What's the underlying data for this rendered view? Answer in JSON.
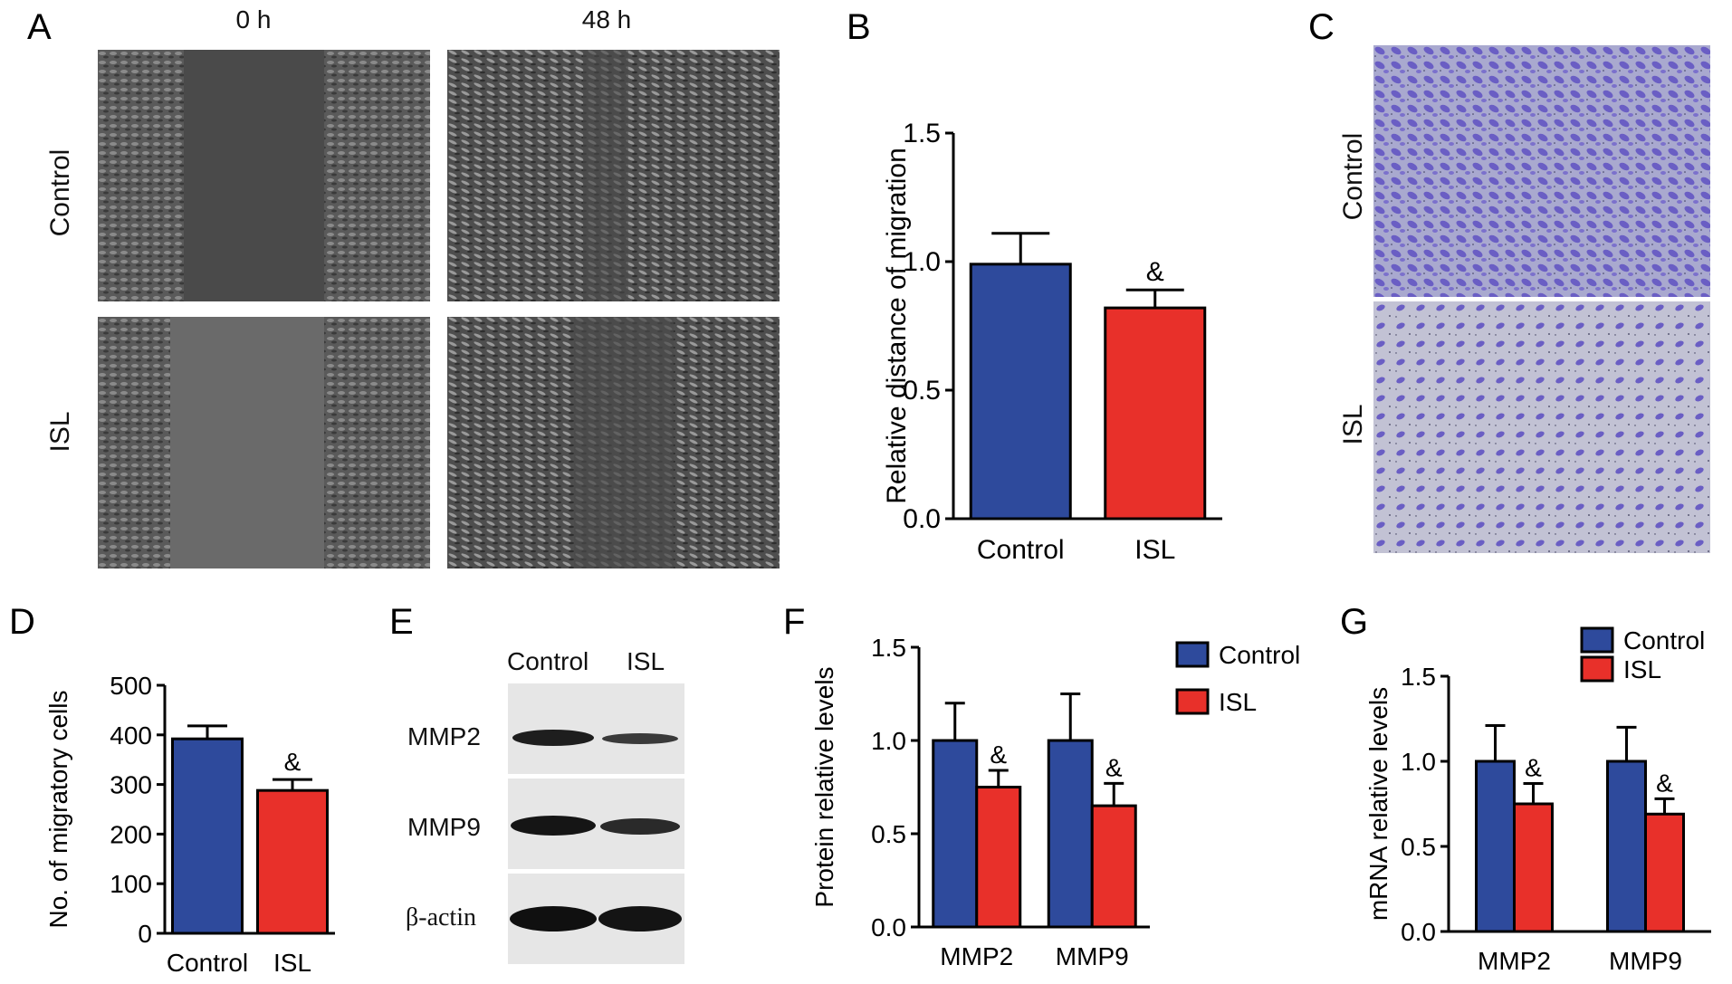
{
  "panels": {
    "A": {
      "letter": "A",
      "col_labels": [
        "0 h",
        "48 h"
      ],
      "row_labels": [
        "Control",
        "ISL"
      ]
    },
    "B": {
      "letter": "B"
    },
    "C": {
      "letter": "C",
      "row_labels": [
        "Control",
        "ISL"
      ]
    },
    "D": {
      "letter": "D"
    },
    "E": {
      "letter": "E",
      "col_labels": [
        "Control",
        "ISL"
      ],
      "row_labels": [
        "MMP2",
        "MMP9",
        "β-actin"
      ]
    },
    "F": {
      "letter": "F"
    },
    "G": {
      "letter": "G"
    }
  },
  "colors": {
    "control": "#2e4a9c",
    "isl": "#e8302a"
  },
  "chart_data": [
    {
      "panel": "B",
      "type": "bar",
      "categories": [
        "Control",
        "ISL"
      ],
      "values": [
        0.99,
        0.82
      ],
      "errors": [
        0.12,
        0.07
      ],
      "annotations": [
        "",
        "&"
      ],
      "ylabel": "Relative distance of migration",
      "ylim": [
        0,
        1.5
      ],
      "yticks": [
        "0.0",
        "0.5",
        "1.0",
        "1.5"
      ]
    },
    {
      "panel": "D",
      "type": "bar",
      "categories": [
        "Control",
        "ISL"
      ],
      "values": [
        392,
        288
      ],
      "errors": [
        26,
        22
      ],
      "annotations": [
        "",
        "&"
      ],
      "ylabel": "No. of migratory cells",
      "ylim": [
        0,
        500
      ],
      "yticks": [
        "0",
        "100",
        "200",
        "300",
        "400",
        "500"
      ]
    },
    {
      "panel": "F",
      "type": "bar",
      "categories": [
        "MMP2",
        "MMP9"
      ],
      "series": [
        {
          "name": "Control",
          "values": [
            1.0,
            1.0
          ],
          "errors": [
            0.2,
            0.25
          ]
        },
        {
          "name": "ISL",
          "values": [
            0.75,
            0.65
          ],
          "errors": [
            0.09,
            0.12
          ]
        }
      ],
      "annotations": [
        "&",
        "&"
      ],
      "ylabel": "Protein relative levels",
      "ylim": [
        0,
        1.5
      ],
      "yticks": [
        "0.0",
        "0.5",
        "1.0",
        "1.5"
      ],
      "legend": "top-right"
    },
    {
      "panel": "G",
      "type": "bar",
      "categories": [
        "MMP2",
        "MMP9"
      ],
      "series": [
        {
          "name": "Control",
          "values": [
            1.0,
            1.0
          ],
          "errors": [
            0.21,
            0.2
          ]
        },
        {
          "name": "ISL",
          "values": [
            0.75,
            0.69
          ],
          "errors": [
            0.12,
            0.09
          ]
        }
      ],
      "annotations": [
        "&",
        "&"
      ],
      "ylabel": "mRNA relative levels",
      "ylim": [
        0,
        1.5
      ],
      "yticks": [
        "0.0",
        "0.5",
        "1.0",
        "1.5"
      ],
      "legend": "top-right"
    }
  ]
}
